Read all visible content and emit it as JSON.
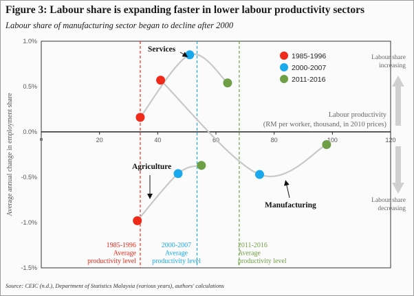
{
  "title": "Figure 3: Labour share is expanding faster in lower labour productivity sectors",
  "subtitle": "Labour share of manufacturing sector began to decline after 2000",
  "source": "Source: CEIC (n.d.), Department of Statistics Malaysia (various years), authors' calculations",
  "colors": {
    "period1": "#f02a1a",
    "period2": "#1aa9ec",
    "period3": "#6f9f45",
    "trail": "#c8c8c8",
    "arrow": "#d0d0d0"
  },
  "chart_data": {
    "type": "scatter",
    "x_axis_label_line1": "Labour productivity",
    "x_axis_label_line2": "(RM per worker, thousand, in 2010 prices)",
    "ylabel": "Average annual change in employment share",
    "xlim": [
      0,
      120
    ],
    "ylim": [
      -1.5,
      1.0
    ],
    "x_ticks": [
      {
        "value": 0,
        "label": "0"
      },
      {
        "value": 20,
        "label": "20"
      },
      {
        "value": 40,
        "label": "40"
      },
      {
        "value": 60,
        "label": "60"
      },
      {
        "value": 80,
        "label": "80"
      },
      {
        "value": 100,
        "label": "100"
      },
      {
        "value": 120,
        "label": "120"
      }
    ],
    "y_ticks": [
      {
        "value": 1.0,
        "label": "1.0%"
      },
      {
        "value": 0.5,
        "label": "0.5%"
      },
      {
        "value": 0.0,
        "label": "0.0%"
      },
      {
        "value": -0.5,
        "label": "-0.5%"
      },
      {
        "value": -1.0,
        "label": "-1.0%"
      },
      {
        "value": -1.5,
        "label": "-1.5%"
      }
    ],
    "legend": [
      {
        "label": "1985-1996",
        "color_key": "period1"
      },
      {
        "label": "2000-2007",
        "color_key": "period2"
      },
      {
        "label": "2011-2016",
        "color_key": "period3"
      }
    ],
    "series": [
      {
        "name": "Services",
        "points": [
          {
            "period": "1985-1996",
            "x": 34,
            "y": 0.16
          },
          {
            "period": "2000-2007",
            "x": 51,
            "y": 0.85
          },
          {
            "period": "2011-2016",
            "x": 64,
            "y": 0.54
          }
        ]
      },
      {
        "name": "Manufacturing",
        "points": [
          {
            "period": "1985-1996",
            "x": 41,
            "y": 0.57
          },
          {
            "period": "2000-2007",
            "x": 75,
            "y": -0.47
          },
          {
            "period": "2011-2016",
            "x": 98,
            "y": -0.14
          }
        ]
      },
      {
        "name": "Agriculture",
        "points": [
          {
            "period": "1985-1996",
            "x": 33,
            "y": -0.98
          },
          {
            "period": "2000-2007",
            "x": 47,
            "y": -0.46
          },
          {
            "period": "2011-2016",
            "x": 55,
            "y": -0.37
          }
        ]
      }
    ],
    "reference_lines": [
      {
        "period": "1985-1996",
        "x": 34,
        "color_key": "period1",
        "label_lines": [
          "1985-1996",
          "Average",
          "productivity level"
        ]
      },
      {
        "period": "2000-2007",
        "x": 53.5,
        "color_key": "period2",
        "label_lines": [
          "2000-2007",
          "Average",
          "productivity level"
        ]
      },
      {
        "period": "2011-2016",
        "x": 68,
        "color_key": "period3",
        "label_lines": [
          "2011-2016",
          "Average",
          "productivity level"
        ]
      }
    ],
    "side_annotations": {
      "up": [
        "Labour share",
        "increasing"
      ],
      "down": [
        "Labour share",
        "decreasing"
      ]
    }
  }
}
